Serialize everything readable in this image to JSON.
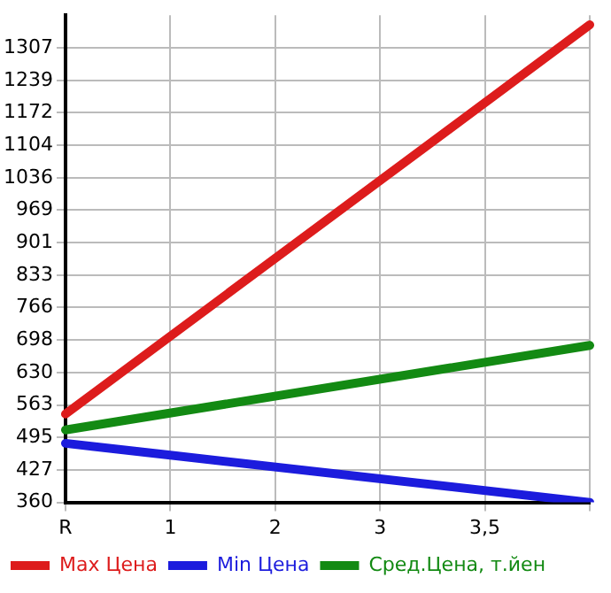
{
  "chart_data": {
    "type": "line",
    "categories": [
      "R",
      "1",
      "2",
      "3",
      "3,5",
      null
    ],
    "series": [
      {
        "name": "Max Цена",
        "color": "#dd1c1c",
        "values": [
          544,
          null,
          null,
          null,
          null,
          1355
        ]
      },
      {
        "name": "Min Цена",
        "color": "#1c1cdd",
        "values": [
          483,
          null,
          null,
          null,
          null,
          360
        ]
      },
      {
        "name": "Сред.Цена, т.йен",
        "color": "#138a13",
        "values": [
          511,
          null,
          null,
          null,
          null,
          687
        ]
      }
    ],
    "ylim": [
      360,
      1375
    ],
    "yticks": [
      360,
      427,
      495,
      563,
      630,
      698,
      766,
      833,
      901,
      969,
      1036,
      1104,
      1172,
      1239,
      1307
    ],
    "grid": true,
    "legend": "bottom",
    "marker": "none",
    "line_style": "solid"
  }
}
